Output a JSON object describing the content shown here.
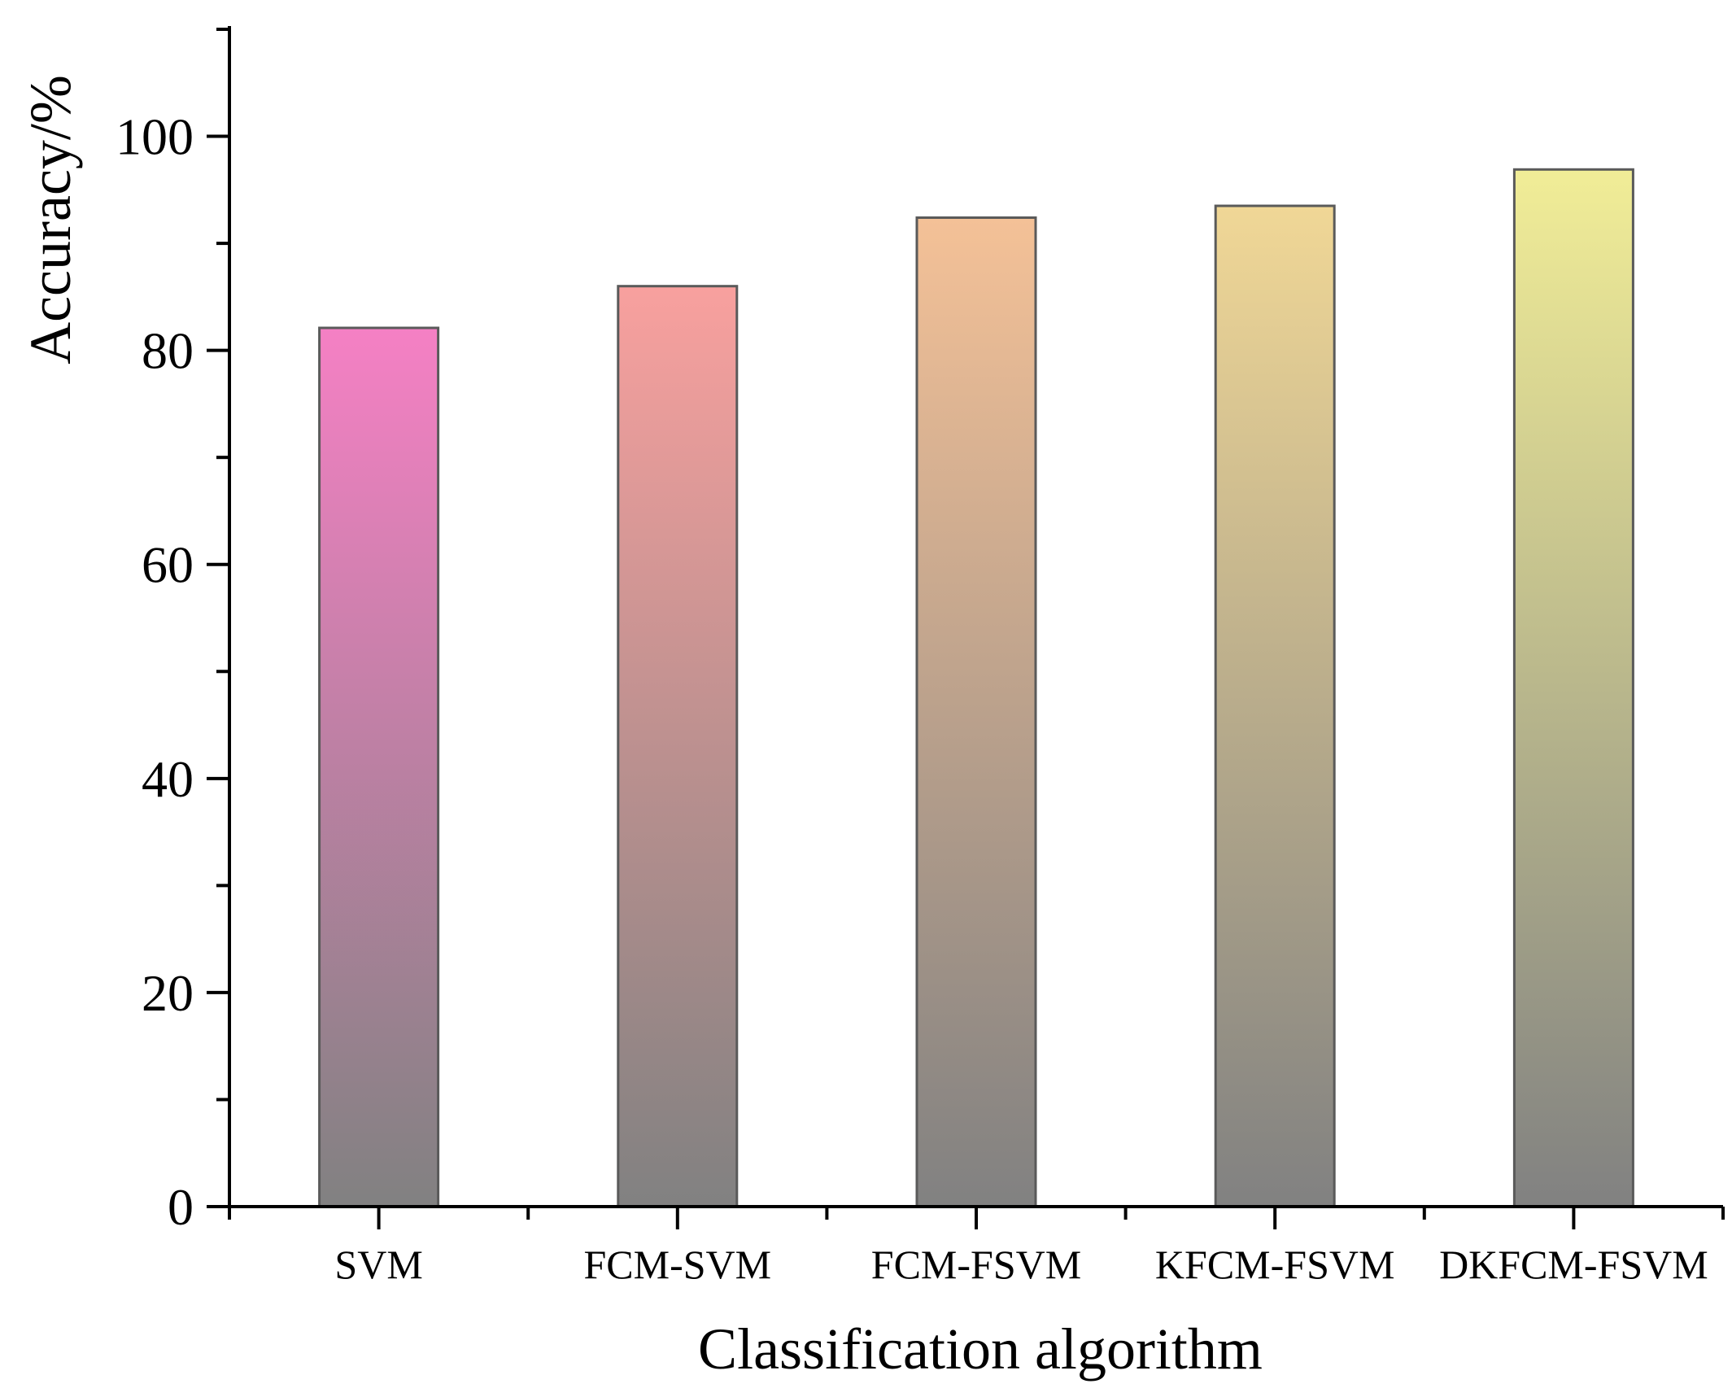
{
  "chart_data": {
    "type": "bar",
    "title": "",
    "xlabel": "Classification algorithm",
    "ylabel": "Accuracy/%",
    "categories": [
      "SVM",
      "FCM-SVM",
      "FCM-FSVM",
      "KFCM-FSVM",
      "DKFCM-FSVM"
    ],
    "values": [
      82.1,
      86.0,
      92.4,
      93.5,
      96.9
    ],
    "ylim": [
      0,
      110
    ],
    "yticks": [
      0,
      20,
      40,
      60,
      80,
      100
    ],
    "yticks_minor": [
      10,
      30,
      50,
      70,
      90,
      110
    ],
    "ytick_labels": [
      "0",
      "20",
      "40",
      "60",
      "80",
      "100"
    ],
    "grid": false,
    "bar_colors_top": [
      "#F580C4",
      "#F8A09E",
      "#F4C197",
      "#F0D796",
      "#F1ED97"
    ],
    "bar_color_bottom": "#818181",
    "bar_edge_color": "#5a5a5a"
  }
}
